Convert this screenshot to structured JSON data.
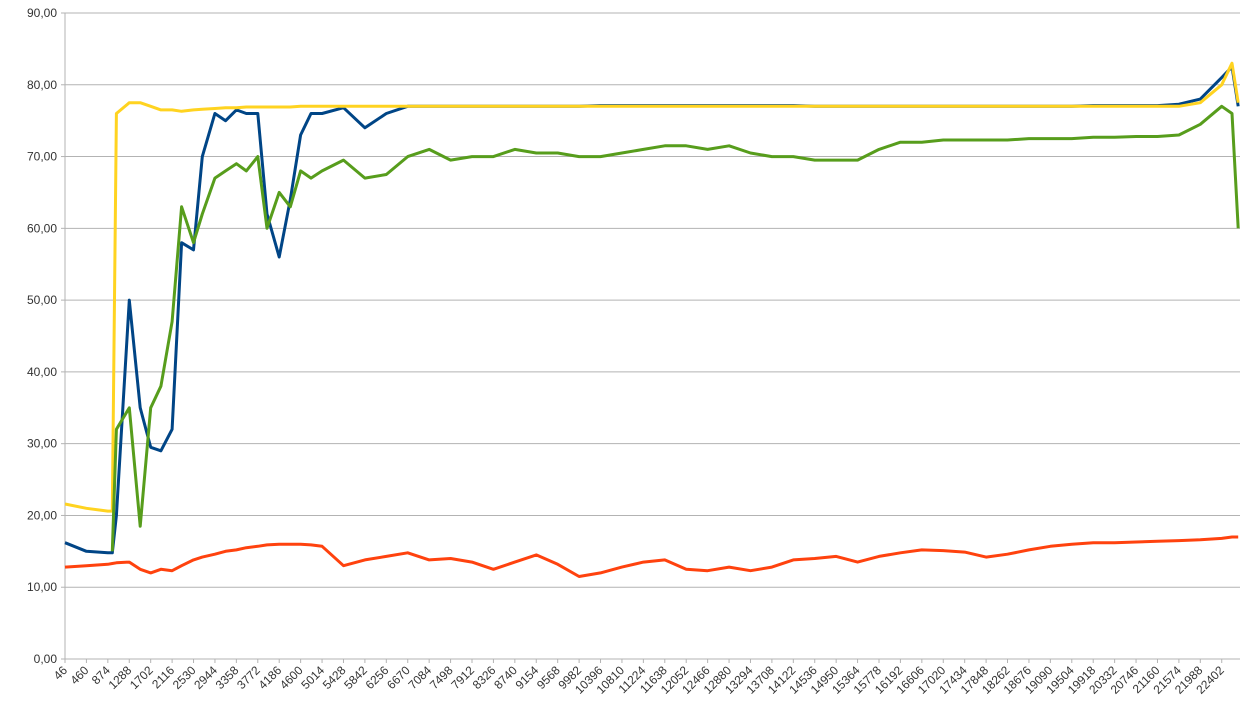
{
  "chart_data": {
    "type": "line",
    "x": [
      46,
      460,
      874,
      960,
      1040,
      1288,
      1500,
      1702,
      1900,
      2116,
      2300,
      2530,
      2700,
      2944,
      3150,
      3358,
      3550,
      3772,
      3950,
      4186,
      4400,
      4600,
      4800,
      5014,
      5428,
      5842,
      6256,
      6670,
      7084,
      7498,
      7912,
      8326,
      8740,
      9154,
      9568,
      9982,
      10396,
      10810,
      11224,
      11638,
      12052,
      12466,
      12880,
      13294,
      13708,
      14122,
      14536,
      14950,
      15364,
      15778,
      16192,
      16606,
      17020,
      17434,
      17848,
      18262,
      18676,
      19090,
      19504,
      19918,
      20332,
      20746,
      21160,
      21574,
      21988,
      22402,
      22600,
      22720
    ],
    "series": [
      {
        "color": "#004586",
        "values": [
          16.2,
          15,
          14.8,
          14.8,
          20,
          50,
          35,
          29.5,
          29,
          32,
          58,
          57,
          70,
          76,
          75,
          76.5,
          76,
          76,
          62,
          56,
          64,
          73,
          76,
          76,
          76.8,
          74,
          76,
          77,
          77,
          77,
          77,
          77,
          77,
          77,
          77,
          77,
          77.1,
          77.1,
          77.1,
          77.1,
          77.1,
          77.1,
          77.1,
          77.1,
          77.1,
          77.1,
          77,
          77,
          77,
          77,
          77,
          77,
          77,
          77,
          77,
          77,
          77,
          77,
          77,
          77.1,
          77.1,
          77.1,
          77.1,
          77.3,
          78,
          81,
          82.5,
          77
        ]
      },
      {
        "color": "#ffd320",
        "values": [
          21.6,
          21,
          20.6,
          20.6,
          76,
          77.5,
          77.5,
          77,
          76.5,
          76.5,
          76.3,
          76.5,
          76.6,
          76.7,
          76.8,
          76.8,
          76.9,
          76.9,
          76.9,
          76.9,
          76.9,
          77,
          77,
          77,
          77,
          77,
          77,
          77,
          77,
          77,
          77,
          77,
          77,
          77,
          77,
          77,
          77,
          77,
          77,
          77,
          77,
          77,
          77,
          77,
          77,
          77,
          77,
          77,
          77,
          77,
          77,
          77,
          77,
          77,
          77,
          77,
          77,
          77,
          77,
          77,
          77,
          77,
          77,
          77,
          77.5,
          80,
          83,
          77.5
        ]
      },
      {
        "color": "#579d1c",
        "values": [
          null,
          null,
          null,
          15,
          32,
          35,
          18.5,
          35,
          38,
          47,
          63,
          58,
          62,
          67,
          68,
          69,
          68,
          70,
          60,
          65,
          63,
          68,
          67,
          68,
          69.5,
          67,
          67.5,
          70,
          71,
          69.5,
          70,
          70,
          71,
          70.5,
          70.5,
          70,
          70,
          70.5,
          71,
          71.5,
          71.5,
          71,
          71.5,
          70.5,
          70,
          70,
          69.5,
          69.5,
          69.5,
          71,
          72,
          72,
          72.3,
          72.3,
          72.3,
          72.3,
          72.5,
          72.5,
          72.5,
          72.7,
          72.7,
          72.8,
          72.8,
          73,
          74.5,
          77,
          76,
          60
        ]
      },
      {
        "color": "#ff420e",
        "values": [
          12.8,
          13,
          13.2,
          13.3,
          13.4,
          13.5,
          12.5,
          12,
          12.5,
          12.3,
          13,
          13.8,
          14.2,
          14.6,
          15,
          15.2,
          15.5,
          15.7,
          15.9,
          16,
          16,
          16,
          15.9,
          15.7,
          13,
          13.8,
          14.3,
          14.8,
          13.8,
          14,
          13.5,
          12.5,
          13.5,
          14.5,
          13.2,
          11.5,
          12,
          12.8,
          13.5,
          13.8,
          12.5,
          12.3,
          12.8,
          12.3,
          12.8,
          13.8,
          14,
          14.3,
          13.5,
          14.3,
          14.8,
          15.2,
          15.1,
          14.9,
          14.2,
          14.6,
          15.2,
          15.7,
          16,
          16.2,
          16.2,
          16.3,
          16.4,
          16.5,
          16.6,
          16.8,
          17,
          17
        ]
      }
    ],
    "xlim": [
      46,
      22755
    ],
    "xticks": [
      46,
      460,
      874,
      1288,
      1702,
      2116,
      2530,
      2944,
      3358,
      3772,
      4186,
      4600,
      5014,
      5428,
      5842,
      6256,
      6670,
      7084,
      7498,
      7912,
      8326,
      8740,
      9154,
      9568,
      9982,
      10396,
      10810,
      11224,
      11638,
      12052,
      12466,
      12880,
      13294,
      13708,
      14122,
      14536,
      14950,
      15364,
      15778,
      16192,
      16606,
      17020,
      17434,
      17848,
      18262,
      18676,
      19090,
      19504,
      19918,
      20332,
      20746,
      21160,
      21574,
      21988,
      22402
    ],
    "ylim": [
      0,
      90
    ],
    "yticks": [
      {
        "value": 0,
        "label": "0,00"
      },
      {
        "value": 10,
        "label": "10,00"
      },
      {
        "value": 20,
        "label": "20,00"
      },
      {
        "value": 30,
        "label": "30,00"
      },
      {
        "value": 40,
        "label": "40,00"
      },
      {
        "value": 50,
        "label": "50,00"
      },
      {
        "value": 60,
        "label": "60,00"
      },
      {
        "value": 70,
        "label": "70,00"
      },
      {
        "value": 80,
        "label": "80,00"
      },
      {
        "value": 90,
        "label": "90,00"
      }
    ],
    "grid": true
  }
}
